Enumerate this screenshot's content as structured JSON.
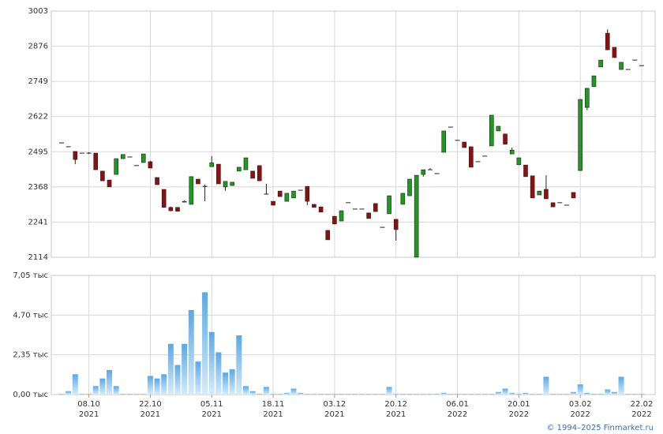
{
  "chart_data": [
    {
      "type": "candlestick",
      "open": [
        2527,
        2513,
        2496,
        2490,
        2490,
        2490,
        2425,
        2393,
        2413,
        2470,
        2476,
        2445,
        2456,
        2459,
        2402,
        2359,
        2294,
        2294,
        2313,
        2305,
        2396,
        2370,
        2441,
        2450,
        2368,
        2373,
        2425,
        2430,
        2425,
        2445,
        2342,
        2316,
        2353,
        2316,
        2328,
        2356,
        2370,
        2305,
        2296,
        2211,
        2262,
        2245,
        2311,
        2288,
        2288,
        2274,
        2308,
        2222,
        2271,
        2251,
        2305,
        2336,
        2114,
        2413,
        2430,
        2416,
        2493,
        2584,
        2536,
        2530,
        2513,
        2459,
        2479,
        2516,
        2570,
        2559,
        2487,
        2448,
        2447,
        2408,
        2339,
        2359,
        2311,
        2311,
        2302,
        2348,
        2427,
        2655,
        2730,
        2801,
        2923,
        2872,
        2792,
        2792,
        2826,
        2806
      ],
      "high": [
        2527,
        2513,
        2496,
        2490,
        2493,
        2490,
        2425,
        2393,
        2470,
        2485,
        2476,
        2445,
        2487,
        2462,
        2402,
        2359,
        2297,
        2294,
        2319,
        2405,
        2396,
        2376,
        2479,
        2450,
        2388,
        2385,
        2439,
        2473,
        2425,
        2445,
        2379,
        2316,
        2353,
        2345,
        2353,
        2356,
        2370,
        2305,
        2296,
        2211,
        2262,
        2282,
        2311,
        2288,
        2288,
        2274,
        2308,
        2222,
        2336,
        2251,
        2345,
        2396,
        2410,
        2430,
        2436,
        2416,
        2570,
        2584,
        2536,
        2530,
        2513,
        2459,
        2479,
        2627,
        2587,
        2559,
        2510,
        2473,
        2447,
        2408,
        2353,
        2410,
        2311,
        2311,
        2302,
        2348,
        2684,
        2724,
        2769,
        2826,
        2937,
        2872,
        2818,
        2792,
        2826,
        2806
      ],
      "low": [
        2527,
        2513,
        2450,
        2490,
        2487,
        2430,
        2390,
        2368,
        2413,
        2470,
        2476,
        2445,
        2456,
        2436,
        2376,
        2294,
        2280,
        2280,
        2313,
        2305,
        2379,
        2316,
        2441,
        2379,
        2354,
        2373,
        2425,
        2430,
        2399,
        2390,
        2342,
        2302,
        2333,
        2316,
        2328,
        2356,
        2302,
        2294,
        2277,
        2177,
        2234,
        2245,
        2311,
        2288,
        2288,
        2254,
        2279,
        2222,
        2271,
        2174,
        2305,
        2336,
        2114,
        2405,
        2430,
        2416,
        2493,
        2584,
        2536,
        2510,
        2439,
        2459,
        2479,
        2516,
        2570,
        2522,
        2487,
        2448,
        2405,
        2328,
        2339,
        2325,
        2296,
        2311,
        2302,
        2328,
        2427,
        2645,
        2730,
        2801,
        2863,
        2835,
        2792,
        2792,
        2826,
        2806
      ],
      "close": [
        2527,
        2513,
        2467,
        2490,
        2490,
        2430,
        2390,
        2368,
        2470,
        2485,
        2476,
        2445,
        2487,
        2436,
        2376,
        2294,
        2282,
        2280,
        2316,
        2405,
        2379,
        2370,
        2455,
        2379,
        2388,
        2385,
        2439,
        2473,
        2399,
        2390,
        2342,
        2302,
        2333,
        2345,
        2353,
        2356,
        2316,
        2294,
        2277,
        2177,
        2234,
        2282,
        2311,
        2288,
        2288,
        2254,
        2279,
        2222,
        2336,
        2214,
        2345,
        2396,
        2410,
        2430,
        2430,
        2416,
        2570,
        2584,
        2536,
        2510,
        2439,
        2459,
        2479,
        2627,
        2587,
        2522,
        2501,
        2473,
        2405,
        2328,
        2353,
        2325,
        2296,
        2311,
        2302,
        2328,
        2684,
        2724,
        2769,
        2826,
        2863,
        2835,
        2818,
        2792,
        2826,
        2806
      ],
      "up_color": "#1f9a1f",
      "down_color": "#8e0f0f",
      "ylim": [
        2114,
        3003
      ],
      "yticks": [
        2114,
        2241,
        2368,
        2495,
        2622,
        2749,
        2876,
        3003
      ],
      "grid": true
    },
    {
      "type": "bar",
      "categories": [
        null,
        null,
        null,
        null,
        "08.10",
        null,
        null,
        null,
        null,
        null,
        null,
        null,
        null,
        "22.10",
        null,
        null,
        null,
        null,
        null,
        null,
        null,
        null,
        "05.11",
        null,
        null,
        null,
        null,
        null,
        null,
        null,
        null,
        "18.11",
        null,
        null,
        null,
        null,
        null,
        null,
        null,
        null,
        "03.12",
        null,
        null,
        null,
        null,
        null,
        null,
        null,
        null,
        "20.12",
        null,
        null,
        null,
        null,
        null,
        null,
        null,
        null,
        "06.01",
        null,
        null,
        null,
        null,
        null,
        null,
        null,
        null,
        "20.01",
        null,
        null,
        null,
        null,
        null,
        null,
        null,
        null,
        "03.02",
        null,
        null,
        null,
        null,
        null,
        null,
        null,
        null,
        "22.02"
      ],
      "category_years": [
        null,
        null,
        null,
        null,
        "2021",
        null,
        null,
        null,
        null,
        null,
        null,
        null,
        null,
        "2021",
        null,
        null,
        null,
        null,
        null,
        null,
        null,
        null,
        "2021",
        null,
        null,
        null,
        null,
        null,
        null,
        null,
        null,
        "2021",
        null,
        null,
        null,
        null,
        null,
        null,
        null,
        null,
        "2021",
        null,
        null,
        null,
        null,
        null,
        null,
        null,
        null,
        "2021",
        null,
        null,
        null,
        null,
        null,
        null,
        null,
        null,
        "2022",
        null,
        null,
        null,
        null,
        null,
        null,
        null,
        null,
        "2022",
        null,
        null,
        null,
        null,
        null,
        null,
        null,
        null,
        "2022",
        null,
        null,
        null,
        null,
        null,
        null,
        null,
        null,
        "2022"
      ],
      "values": [
        0.05,
        0.2,
        1.2,
        0.05,
        0.05,
        0.5,
        0.95,
        1.45,
        0.5,
        0.05,
        0.05,
        0.05,
        0.05,
        1.1,
        0.95,
        1.2,
        3.0,
        1.75,
        3.0,
        5.0,
        1.95,
        6.05,
        3.7,
        2.5,
        1.3,
        1.5,
        3.5,
        0.5,
        0.2,
        0.05,
        0.45,
        0.05,
        0.05,
        0.1,
        0.35,
        0.1,
        0.05,
        0.05,
        0.05,
        0.05,
        0.05,
        0.05,
        0.05,
        0.05,
        0.05,
        0.05,
        0.05,
        0.05,
        0.45,
        0.05,
        0.05,
        0.05,
        0.05,
        0.05,
        0.05,
        0.05,
        0.1,
        0.05,
        0.05,
        0.05,
        0.05,
        0.05,
        0.05,
        0.05,
        0.15,
        0.35,
        0.1,
        0.05,
        0.1,
        0.05,
        0.05,
        1.05,
        0.05,
        0.05,
        0.05,
        0.15,
        0.6,
        0.1,
        0.05,
        0.05,
        0.3,
        0.15,
        1.05,
        0.05,
        0.05,
        0.05
      ],
      "color": "#7dbdef",
      "ylim": [
        0,
        7.05
      ],
      "yticks": [
        {
          "value": 0,
          "label": "0,00 тыс"
        },
        {
          "value": 2.35,
          "label": "2,35 тыс"
        },
        {
          "value": 4.7,
          "label": "4,70 тыс"
        },
        {
          "value": 7.05,
          "label": "7,05 тыс"
        }
      ],
      "grid": true
    }
  ],
  "footer": "© 1994–2025 Finmarket.ru"
}
